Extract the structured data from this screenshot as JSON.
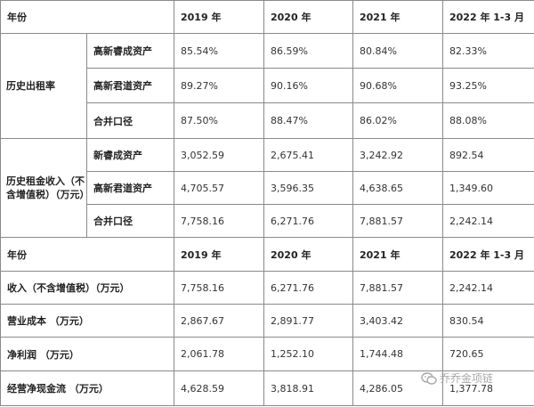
{
  "top_header": [
    "年份",
    "2019 年",
    "2020 年",
    "2021 年",
    "2022 年 1-3 月"
  ],
  "groups": [
    {
      "label": "历史出租率",
      "rows": [
        {
          "sub": "高新睿成资产",
          "values": [
            "85.54%",
            "86.59%",
            "80.84%",
            "82.33%"
          ]
        },
        {
          "sub": "高新君道资产",
          "values": [
            "89.27%",
            "90.16%",
            "90.68%",
            "93.25%"
          ]
        },
        {
          "sub": "合并口径",
          "values": [
            "87.50%",
            "88.47%",
            "86.02%",
            "88.08%"
          ]
        }
      ]
    },
    {
      "label": "历史租金收入（不含增值税）（万元）",
      "rows": [
        {
          "sub": "新睿成资产",
          "values": [
            "3,052.59",
            "2,675.41",
            "3,242.92",
            "892.54"
          ]
        },
        {
          "sub": "高新君道资产",
          "values": [
            "4,705.57",
            "3,596.35",
            "4,638.65",
            "1,349.60"
          ]
        },
        {
          "sub": "合并口径",
          "values": [
            "7,758.16",
            "6,271.76",
            "7,881.57",
            "2,242.14"
          ]
        }
      ]
    }
  ],
  "second_header": [
    "年份",
    "2019 年",
    "2020 年",
    "2021 年",
    "2022 年 1-3 月"
  ],
  "bottom_rows": [
    {
      "label": "收入（不含增值税）（万元）",
      "values": [
        "7,758.16",
        "6,271.76",
        "7,881.57",
        "2,242.14"
      ]
    },
    {
      "label": "营业成本 （万元）",
      "values": [
        "2,867.67",
        "2,891.77",
        "3,403.42",
        "830.54"
      ]
    },
    {
      "label": "净利润 （万元）",
      "values": [
        "2,061.78",
        "1,252.10",
        "1,744.48",
        "720.65"
      ]
    },
    {
      "label": "经营净现金流 （万元）",
      "values": [
        "4,628.59",
        "3,818.91",
        "4,286.05",
        "1,377.78"
      ]
    }
  ],
  "watermark": {
    "text": "乔乔金项链"
  }
}
